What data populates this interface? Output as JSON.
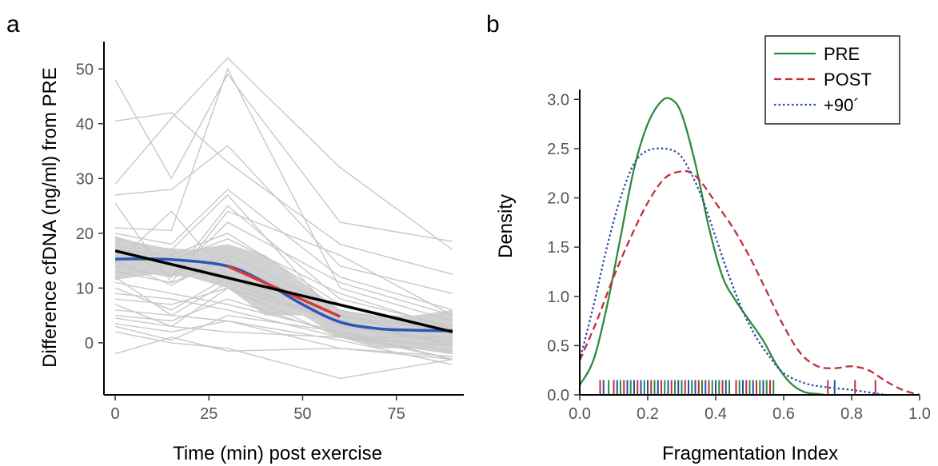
{
  "chart_data": [
    {
      "panel": "a",
      "type": "line",
      "title": "",
      "xlabel": "Time (min) post exercise",
      "ylabel": "Difference cfDNA (ng/ml) from PRE",
      "xlim": [
        -3,
        93
      ],
      "ylim": [
        -9.5,
        55
      ],
      "xticks": [
        0,
        25,
        50,
        75
      ],
      "yticks": [
        0,
        10,
        20,
        30,
        40,
        50
      ],
      "x": [
        0,
        15,
        30,
        60,
        90
      ],
      "individual_color": "#c8c8c8",
      "individual_series": [
        [
          48,
          30,
          49,
          22,
          18.5
        ],
        [
          40.5,
          42,
          33,
          18,
          12.5
        ],
        [
          29,
          41,
          52,
          32,
          17
        ],
        [
          27,
          28,
          36,
          14,
          9
        ],
        [
          25.5,
          11,
          24,
          16,
          5
        ],
        [
          21,
          20.5,
          50,
          10,
          4
        ],
        [
          20,
          18,
          28,
          12,
          6
        ],
        [
          19,
          17,
          27,
          4,
          3
        ],
        [
          18,
          12,
          22,
          11,
          5
        ],
        [
          17,
          16,
          20,
          7,
          2
        ],
        [
          16,
          15,
          19,
          9,
          2.5
        ],
        [
          15,
          10.5,
          16,
          6,
          1.5
        ],
        [
          14.5,
          24,
          12,
          5,
          2
        ],
        [
          14,
          12,
          25,
          8,
          3
        ],
        [
          13,
          11,
          15,
          5,
          0.5
        ],
        [
          12,
          5,
          11,
          4,
          -0.5
        ],
        [
          11,
          9,
          7,
          2,
          -1.5
        ],
        [
          10,
          6,
          12,
          3,
          0
        ],
        [
          9,
          8,
          6,
          1,
          -2
        ],
        [
          8,
          7,
          10,
          4,
          0
        ],
        [
          7,
          3,
          10,
          1,
          -0.5
        ],
        [
          6,
          5,
          4,
          -1,
          -2.5
        ],
        [
          5,
          4,
          8,
          1.5,
          -3
        ],
        [
          4.5,
          3,
          2,
          1,
          1
        ],
        [
          3.5,
          2,
          4,
          0.5,
          -4
        ],
        [
          3,
          0.5,
          5,
          2,
          -3
        ],
        [
          2,
          0,
          -1,
          -6.5,
          -3
        ],
        [
          -2,
          1,
          -1.5,
          -1,
          -3
        ]
      ],
      "ci_band": {
        "color": "#cccccc",
        "x": [
          0,
          10,
          20,
          30,
          40,
          50,
          60,
          70,
          80,
          90
        ],
        "upper": [
          19.5,
          17.5,
          17,
          18,
          16,
          11,
          6,
          5,
          5,
          6
        ],
        "lower": [
          11.5,
          12.5,
          12,
          10,
          5,
          5,
          1,
          -1,
          -1,
          -2
        ]
      },
      "smooth_fit": {
        "color": "#2b57b5",
        "x": [
          0,
          15,
          30,
          40,
          50,
          60,
          70,
          80,
          90
        ],
        "y": [
          15.3,
          15.2,
          14,
          11,
          7,
          3.8,
          2.6,
          2.3,
          2.2
        ]
      },
      "linear_fit": {
        "color": "#000000",
        "x": [
          0,
          90
        ],
        "y": [
          16.8,
          2
        ]
      },
      "highlight": {
        "color": "#d63a3a",
        "x": [
          30,
          60
        ],
        "y": [
          14,
          4.8
        ]
      }
    },
    {
      "panel": "b",
      "type": "line",
      "title": "",
      "xlabel": "Fragmentation Index",
      "ylabel": "Density",
      "xlim": [
        0,
        1.0
      ],
      "ylim": [
        0,
        3.1
      ],
      "xticks": [
        0.0,
        0.2,
        0.4,
        0.6,
        0.8,
        1.0
      ],
      "xtick_labels": [
        "0.0",
        "0.2",
        "0.4",
        "0.6",
        "0.8",
        "1.0"
      ],
      "yticks": [
        0.0,
        0.5,
        1.0,
        1.5,
        2.0,
        2.5,
        3.0
      ],
      "ytick_labels": [
        "0.0",
        "0.5",
        "1.0",
        "1.5",
        "2.0",
        "2.5",
        "3.0"
      ],
      "legend_placement": "top-right",
      "series": [
        {
          "name": "PRE",
          "color": "#2e8b3e",
          "dash": "solid",
          "x": [
            0,
            0.04,
            0.08,
            0.12,
            0.16,
            0.2,
            0.24,
            0.27,
            0.3,
            0.34,
            0.38,
            0.42,
            0.46,
            0.5,
            0.54,
            0.58,
            0.62,
            0.66,
            0.7,
            0.72
          ],
          "y": [
            0.1,
            0.35,
            0.9,
            1.6,
            2.3,
            2.75,
            2.98,
            3.0,
            2.85,
            2.35,
            1.7,
            1.2,
            0.95,
            0.75,
            0.55,
            0.3,
            0.12,
            0.03,
            0.01,
            0
          ]
        },
        {
          "name": "POST",
          "color": "#c0303a",
          "dash": "dashed",
          "x": [
            0,
            0.05,
            0.1,
            0.15,
            0.2,
            0.25,
            0.3,
            0.33,
            0.36,
            0.4,
            0.45,
            0.5,
            0.55,
            0.6,
            0.65,
            0.7,
            0.75,
            0.8,
            0.85,
            0.9,
            0.95,
            1.0
          ],
          "y": [
            0.35,
            0.75,
            1.2,
            1.6,
            1.95,
            2.2,
            2.27,
            2.25,
            2.15,
            1.95,
            1.7,
            1.4,
            1.05,
            0.7,
            0.42,
            0.29,
            0.27,
            0.29,
            0.25,
            0.14,
            0.05,
            0.0
          ]
        },
        {
          "name": "+90´",
          "color": "#2c4fa8",
          "dash": "dotted",
          "x": [
            0,
            0.04,
            0.08,
            0.12,
            0.16,
            0.2,
            0.25,
            0.29,
            0.32,
            0.36,
            0.4,
            0.44,
            0.48,
            0.52,
            0.56,
            0.6,
            0.66,
            0.72,
            0.8,
            0.86,
            0.9
          ],
          "y": [
            0.35,
            0.9,
            1.5,
            2.0,
            2.35,
            2.48,
            2.5,
            2.45,
            2.3,
            2.0,
            1.6,
            1.2,
            0.85,
            0.58,
            0.38,
            0.22,
            0.12,
            0.08,
            0.05,
            0.02,
            0
          ]
        }
      ],
      "rug": {
        "PRE": [
          0.085,
          0.12,
          0.15,
          0.19,
          0.22,
          0.25,
          0.28,
          0.3,
          0.33,
          0.36,
          0.39,
          0.41,
          0.44,
          0.47,
          0.5,
          0.53,
          0.55,
          0.57
        ],
        "POST": [
          0.06,
          0.1,
          0.13,
          0.17,
          0.21,
          0.24,
          0.27,
          0.31,
          0.35,
          0.38,
          0.42,
          0.46,
          0.49,
          0.52,
          0.56,
          0.73,
          0.81,
          0.87
        ],
        "+90´": [
          0.07,
          0.11,
          0.14,
          0.16,
          0.18,
          0.2,
          0.23,
          0.26,
          0.29,
          0.32,
          0.34,
          0.37,
          0.4,
          0.43,
          0.48,
          0.51,
          0.54,
          0.75
        ]
      }
    }
  ]
}
